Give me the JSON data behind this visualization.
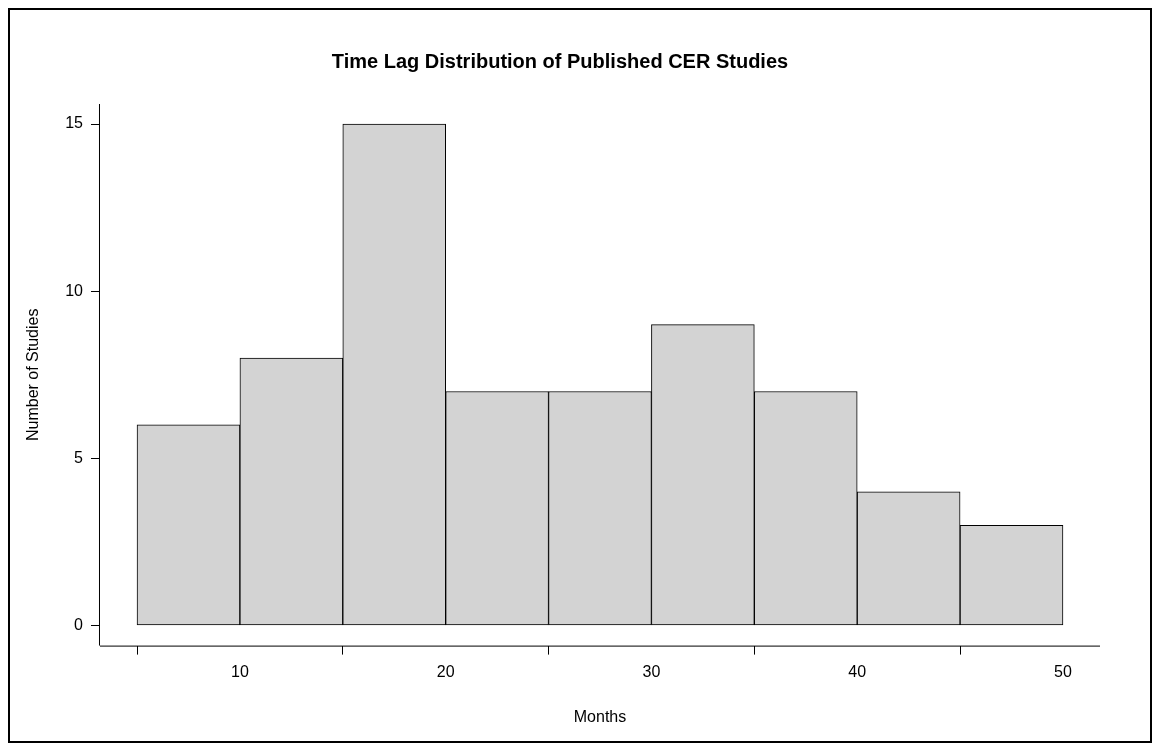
{
  "chart_data": {
    "type": "histogram",
    "title": "Time Lag Distribution of Published CER Studies",
    "xlabel": "Months",
    "ylabel": "Number of Studies",
    "bins": [
      5,
      10,
      15,
      20,
      25,
      30,
      35,
      40,
      45,
      50
    ],
    "values": [
      6,
      8,
      15,
      7,
      7,
      9,
      7,
      4,
      3
    ],
    "color": "#d3d3d3",
    "xlim": [
      3.2,
      51.8
    ],
    "xticks": [
      10,
      20,
      30,
      40,
      50
    ],
    "ylim": [
      -0.6,
      15.6
    ],
    "yticks": [
      0,
      5,
      10,
      15
    ],
    "grid": false,
    "legend": false
  }
}
